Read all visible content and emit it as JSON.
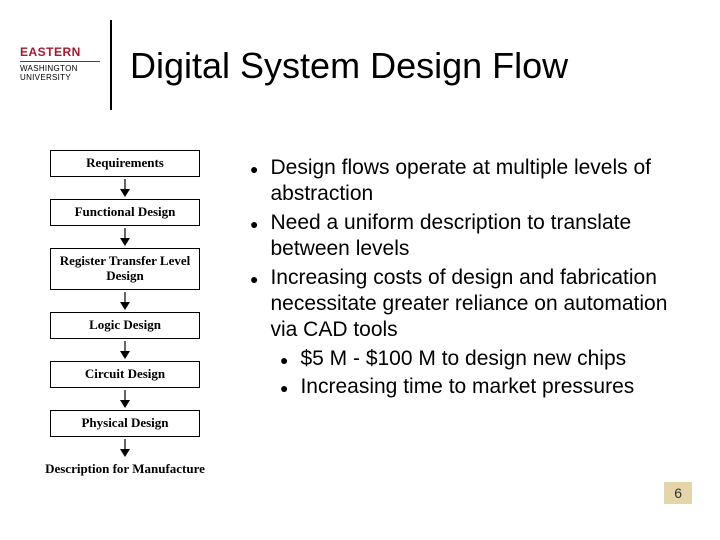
{
  "header": {
    "logo_top": "EASTERN",
    "logo_bottom": "WASHINGTON UNIVERSITY",
    "logo_top_color": "#a6192e",
    "title": "Digital System Design Flow",
    "title_fontsize": 36,
    "title_color": "#000000"
  },
  "flowchart": {
    "type": "flowchart",
    "box_border_color": "#000000",
    "box_background": "#ffffff",
    "box_font": "Times New Roman",
    "box_fontsize": 13,
    "arrow_color": "#000000",
    "nodes": [
      {
        "label": "Requirements",
        "shape": "box"
      },
      {
        "label": "Functional Design",
        "shape": "box"
      },
      {
        "label": "Register Transfer Level Design",
        "shape": "box"
      },
      {
        "label": "Logic Design",
        "shape": "box"
      },
      {
        "label": "Circuit Design",
        "shape": "box"
      },
      {
        "label": "Physical Design",
        "shape": "box"
      },
      {
        "label": "Description for Manufacture",
        "shape": "text"
      }
    ]
  },
  "bullets": {
    "fontsize": 21,
    "color": "#000000",
    "items": [
      {
        "text": "Design flows operate at multiple levels of abstraction"
      },
      {
        "text": "Need a uniform description to translate between levels"
      },
      {
        "text": "Increasing costs of design and fabrication necessitate greater reliance on automation via CAD tools",
        "sub": [
          {
            "text": "$5 M - $100 M to design new chips"
          },
          {
            "text": "Increasing time to market pressures"
          }
        ]
      }
    ]
  },
  "page_number": "6",
  "page_number_bg": "#e6d5a8"
}
